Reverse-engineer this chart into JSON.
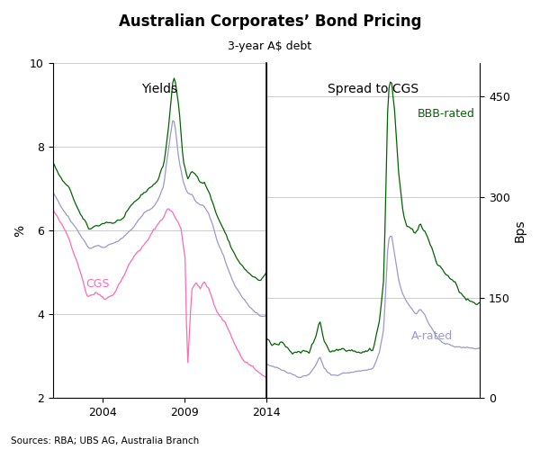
{
  "title": "Australian Corporates’ Bond Pricing",
  "subtitle": "3-year A$ debt",
  "left_ylabel": "%",
  "right_ylabel": "Bps",
  "left_panel_label": "Yields",
  "right_panel_label": "Spread to CGS",
  "source_text": "Sources: RBA; UBS AG, Australia Branch",
  "left_ylim": [
    2,
    10
  ],
  "right_ylim": [
    0,
    500
  ],
  "left_yticks": [
    2,
    4,
    6,
    8,
    10
  ],
  "right_yticks": [
    0,
    150,
    300,
    450
  ],
  "colors": {
    "cgs": "#FF69B4",
    "bbb_yield": "#006400",
    "a_yield": "#9999CC",
    "bbb_spread": "#006400",
    "a_spread": "#9999CC"
  },
  "background_color": "#ffffff",
  "grid_color": "#cccccc"
}
